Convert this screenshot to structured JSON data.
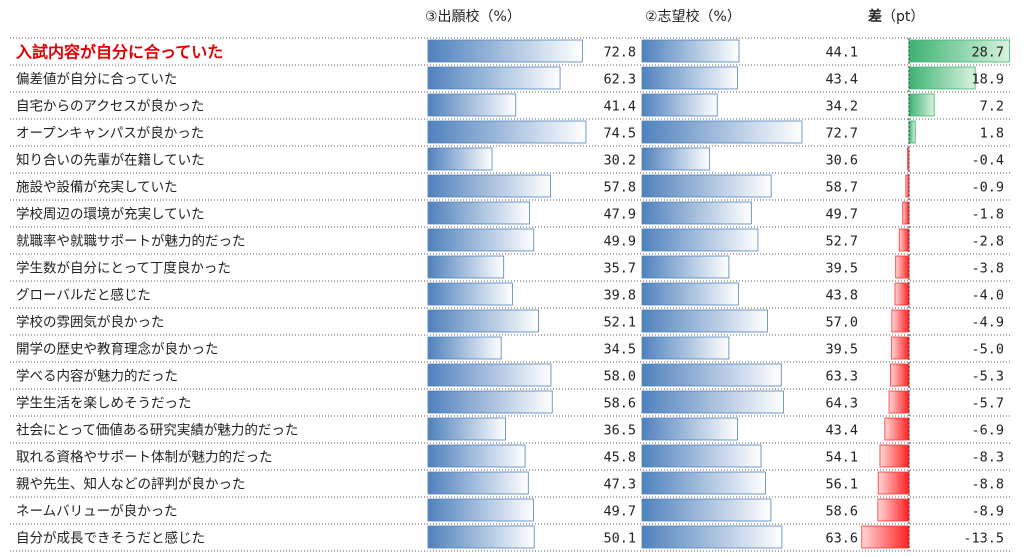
{
  "headers": {
    "col1": "③出願校（%）",
    "col2": "②志望校（%）",
    "col3_label": "差",
    "col3_unit": "（pt）"
  },
  "colors": {
    "blue_bar_light": "#ffffff",
    "blue_bar_dark": "#4f81bd",
    "green_bar": "#3cb371",
    "red_bar": "#ff3030",
    "highlight_text": "#e00000"
  },
  "chart_data": {
    "type": "table",
    "highlight_index": 0,
    "columns": [
      "③出願校（%）",
      "②志望校（%）",
      "差（pt）"
    ],
    "rows": [
      {
        "label": "入試内容が自分に合っていた",
        "a": 72.8,
        "b": 44.1,
        "diff": 28.7
      },
      {
        "label": "偏差値が自分に合っていた",
        "a": 62.3,
        "b": 43.4,
        "diff": 18.9
      },
      {
        "label": "自宅からのアクセスが良かった",
        "a": 41.4,
        "b": 34.2,
        "diff": 7.2
      },
      {
        "label": "オープンキャンパスが良かった",
        "a": 74.5,
        "b": 72.7,
        "diff": 1.8
      },
      {
        "label": "知り合いの先輩が在籍していた",
        "a": 30.2,
        "b": 30.6,
        "diff": -0.4
      },
      {
        "label": "施設や設備が充実していた",
        "a": 57.8,
        "b": 58.7,
        "diff": -0.9
      },
      {
        "label": "学校周辺の環境が充実していた",
        "a": 47.9,
        "b": 49.7,
        "diff": -1.8
      },
      {
        "label": "就職率や就職サポートが魅力的だった",
        "a": 49.9,
        "b": 52.7,
        "diff": -2.8
      },
      {
        "label": "学生数が自分にとって丁度良かった",
        "a": 35.7,
        "b": 39.5,
        "diff": -3.8
      },
      {
        "label": "グローバルだと感じた",
        "a": 39.8,
        "b": 43.8,
        "diff": -4.0
      },
      {
        "label": "学校の雰囲気が良かった",
        "a": 52.1,
        "b": 57.0,
        "diff": -4.9
      },
      {
        "label": "開学の歴史や教育理念が良かった",
        "a": 34.5,
        "b": 39.5,
        "diff": -5.0
      },
      {
        "label": "学べる内容が魅力的だった",
        "a": 58.0,
        "b": 63.3,
        "diff": -5.3
      },
      {
        "label": "学生生活を楽しめそうだった",
        "a": 58.6,
        "b": 64.3,
        "diff": -5.7
      },
      {
        "label": "社会にとって価値ある研究実績が魅力的だった",
        "a": 36.5,
        "b": 43.4,
        "diff": -6.9
      },
      {
        "label": "取れる資格やサポート体制が魅力的だった",
        "a": 45.8,
        "b": 54.1,
        "diff": -8.3
      },
      {
        "label": "親や先生、知人などの評判が良かった",
        "a": 47.3,
        "b": 56.1,
        "diff": -8.8
      },
      {
        "label": "ネームバリューが良かった",
        "a": 49.7,
        "b": 58.6,
        "diff": -8.9
      },
      {
        "label": "自分が成長できそうだと感じた",
        "a": 50.1,
        "b": 63.6,
        "diff": -13.5
      }
    ]
  }
}
